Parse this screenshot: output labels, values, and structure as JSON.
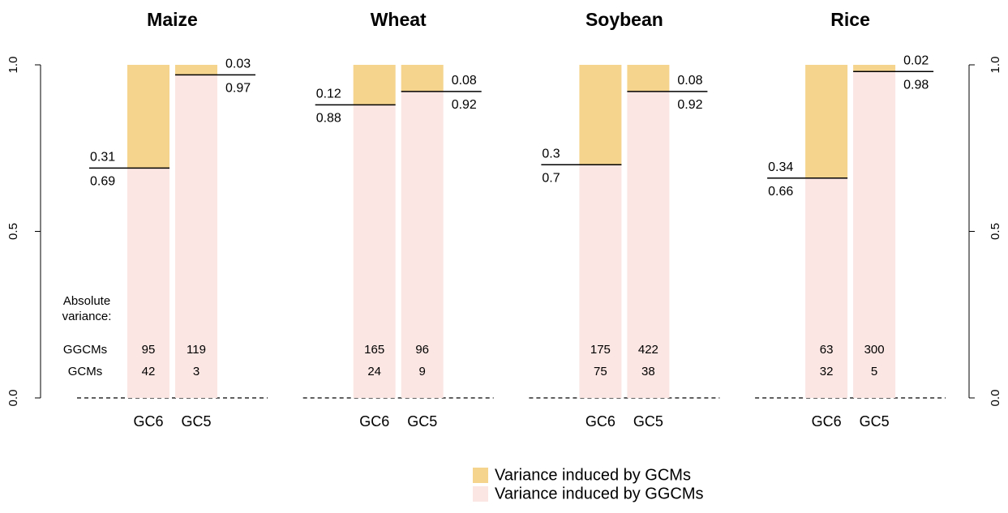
{
  "chart_data": [
    {
      "type": "bar",
      "stacked": true,
      "title": "Maize",
      "categories": [
        "GC6",
        "GC5"
      ],
      "series": [
        {
          "name": "Variance induced by GGCMs",
          "color": "#fbe6e3",
          "values": [
            0.69,
            0.97
          ]
        },
        {
          "name": "Variance induced by GCMs",
          "color": "#f5d48e",
          "values": [
            0.31,
            0.03
          ]
        }
      ],
      "ylim": [
        0,
        1
      ],
      "yticks": [
        {
          "value": 0,
          "label": "0.0"
        },
        0.5,
        {
          "value": 1,
          "label": "1.0"
        }
      ],
      "y_axis": "left",
      "absolute_variance_label": "Absolute variance:",
      "absolute_variance_rows": [
        "GGCMs",
        "GCMs"
      ],
      "absolute_variance": [
        [
          95,
          119
        ],
        [
          42,
          3
        ]
      ]
    },
    {
      "type": "bar",
      "stacked": true,
      "title": "Wheat",
      "categories": [
        "GC6",
        "GC5"
      ],
      "series": [
        {
          "color": "#fbe6e3",
          "values": [
            0.88,
            0.92
          ]
        },
        {
          "color": "#f5d48e",
          "values": [
            0.12,
            0.08
          ]
        }
      ],
      "ylim": [
        0,
        1
      ],
      "absolute_variance": [
        [
          165,
          96
        ],
        [
          24,
          9
        ]
      ]
    },
    {
      "type": "bar",
      "stacked": true,
      "title": "Soybean",
      "categories": [
        "GC6",
        "GC5"
      ],
      "series": [
        {
          "color": "#fbe6e3",
          "values": [
            0.7,
            0.92
          ]
        },
        {
          "color": "#f5d48e",
          "values": [
            0.3,
            0.08
          ]
        }
      ],
      "ylim": [
        0,
        1
      ],
      "absolute_variance": [
        [
          175,
          422
        ],
        [
          75,
          38
        ]
      ]
    },
    {
      "type": "bar",
      "stacked": true,
      "title": "Rice",
      "categories": [
        "GC6",
        "GC5"
      ],
      "series": [
        {
          "color": "#fbe6e3",
          "values": [
            0.66,
            0.98
          ]
        },
        {
          "color": "#f5d48e",
          "values": [
            0.34,
            0.02
          ]
        }
      ],
      "ylim": [
        0,
        1
      ],
      "yticks": [
        {
          "value": 0,
          "label": "0.0"
        },
        0.5,
        {
          "value": 1,
          "label": "1.0"
        }
      ],
      "y_axis": "right",
      "absolute_variance": [
        [
          63,
          300
        ],
        [
          32,
          5
        ]
      ]
    }
  ]
}
